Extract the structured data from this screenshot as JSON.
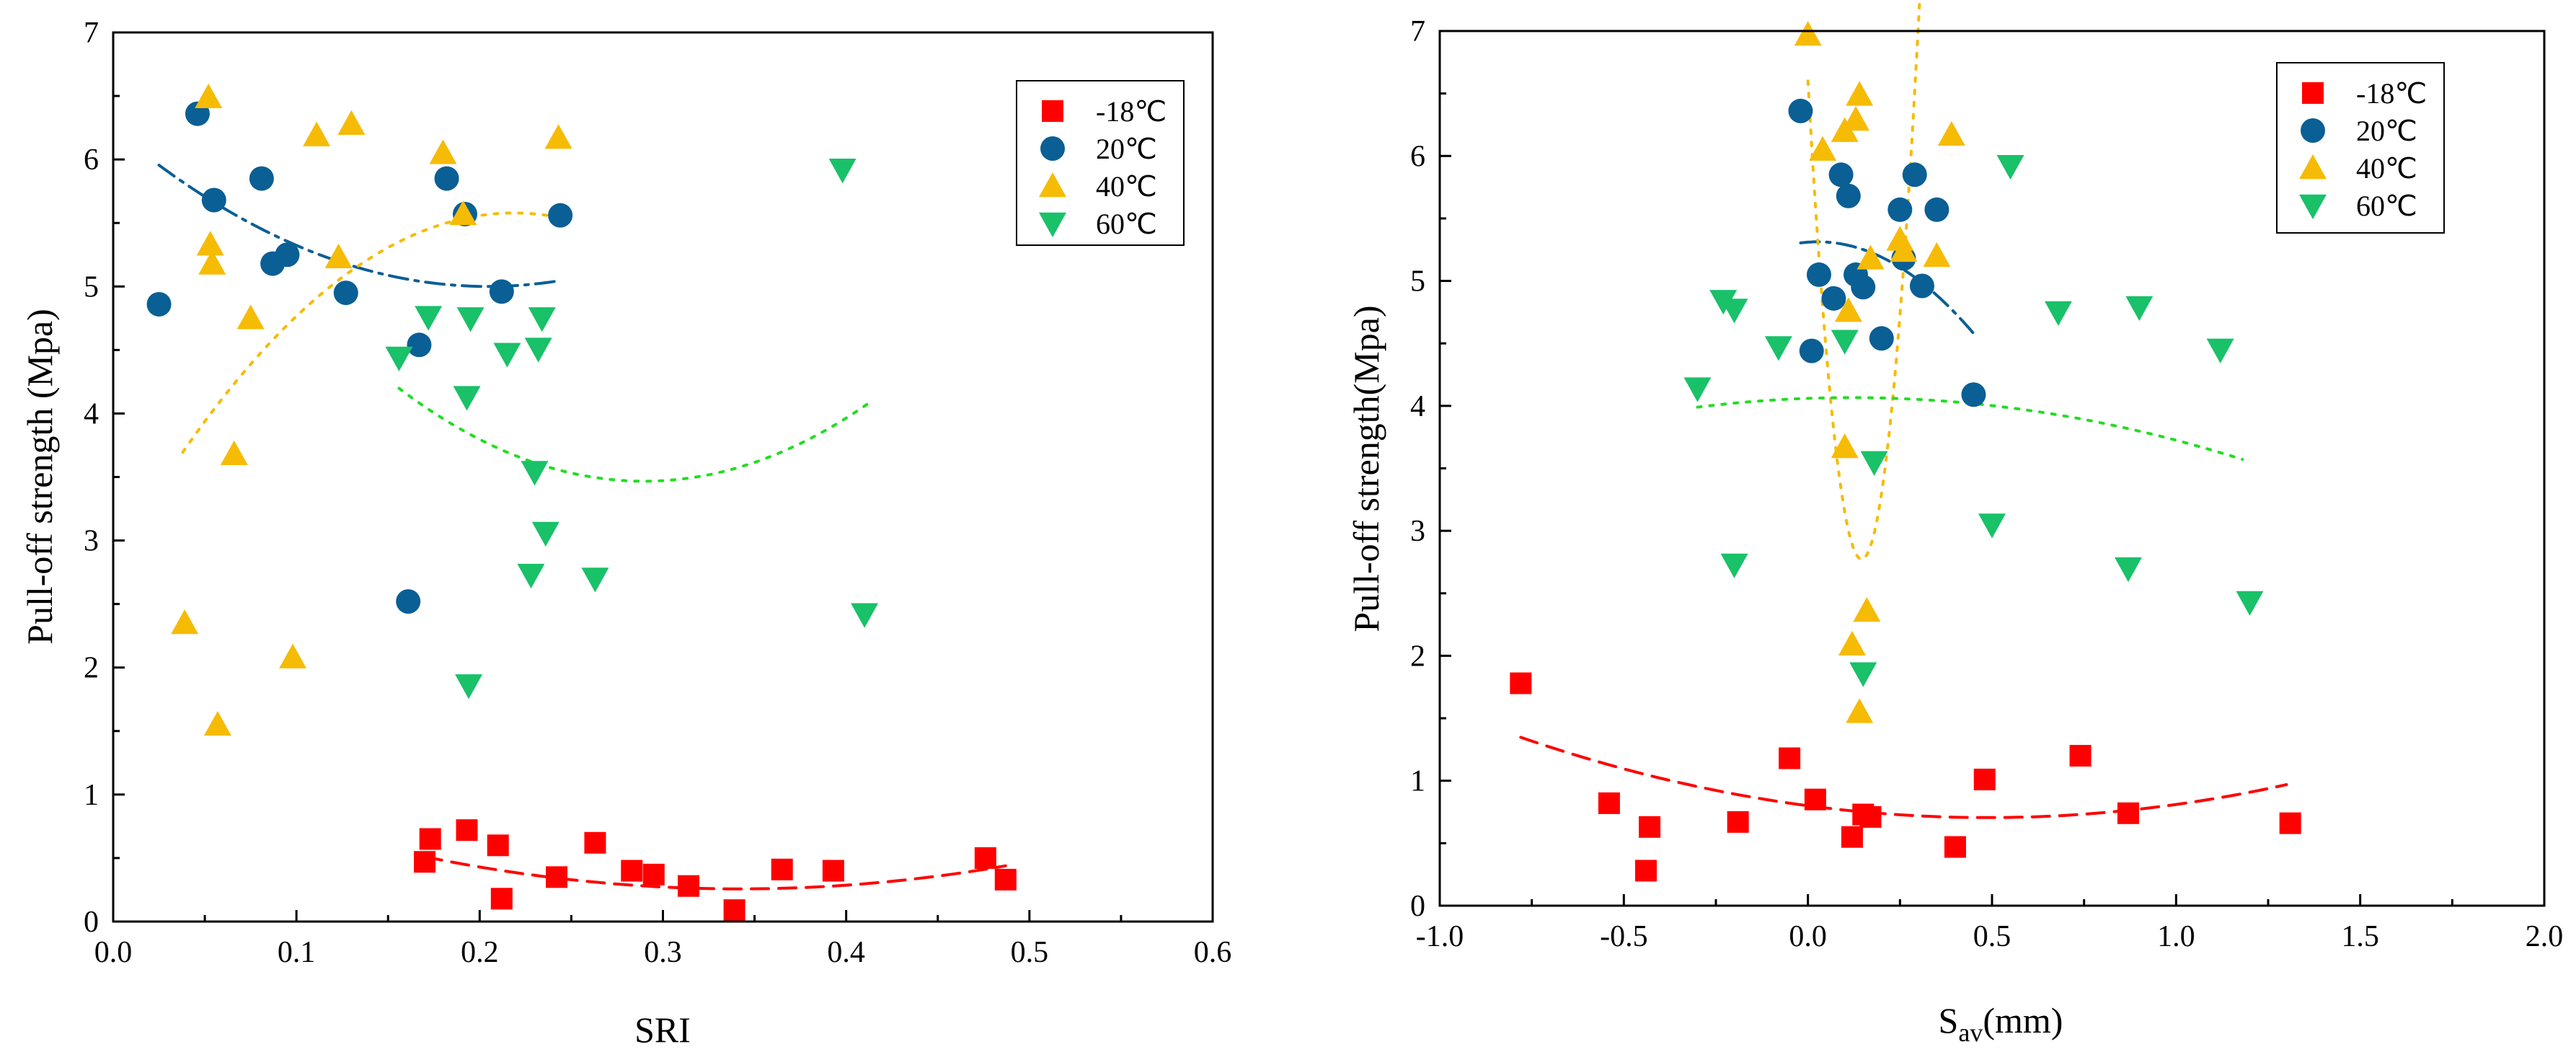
{
  "colors": {
    "m18": "#ff0000",
    "p20": "#0a5f95",
    "p40": "#f6bb04",
    "p60": "#19c169",
    "fit_m18": "#ff0000",
    "fit_p20": "#0a5f95",
    "fit_p40": "#f6bb04",
    "fit_p60": "#22dd22"
  },
  "chart_data": [
    {
      "type": "scatter",
      "xlabel": "SRI",
      "ylabel": "Pull-off strength (Mpa)",
      "xlim": [
        0.0,
        0.6
      ],
      "ylim": [
        0,
        7
      ],
      "xticks": [
        "0.0",
        "0.1",
        "0.2",
        "0.3",
        "0.4",
        "0.5",
        "0.6"
      ],
      "yticks": [
        "0",
        "1",
        "2",
        "3",
        "4",
        "5",
        "6",
        "7"
      ],
      "legend": "top-right",
      "series": [
        {
          "name": "-18℃",
          "marker": "square",
          "color_key": "m18",
          "points": [
            [
              0.17,
              0.47
            ],
            [
              0.173,
              0.65
            ],
            [
              0.193,
              0.72
            ],
            [
              0.21,
              0.6
            ],
            [
              0.212,
              0.18
            ],
            [
              0.242,
              0.35
            ],
            [
              0.263,
              0.62
            ],
            [
              0.283,
              0.4
            ],
            [
              0.295,
              0.37
            ],
            [
              0.314,
              0.28
            ],
            [
              0.339,
              0.09
            ],
            [
              0.365,
              0.41
            ],
            [
              0.393,
              0.4
            ],
            [
              0.476,
              0.5
            ],
            [
              0.487,
              0.33
            ]
          ],
          "fit": {
            "style": "dashed",
            "coeffs": [
              1.26,
              -5.87,
              8.59
            ],
            "range": [
              0.17,
              0.487
            ]
          }
        },
        {
          "name": "20℃",
          "marker": "circle",
          "color_key": "p20",
          "points": [
            [
              0.025,
              4.86
            ],
            [
              0.046,
              6.36
            ],
            [
              0.055,
              5.68
            ],
            [
              0.081,
              5.85
            ],
            [
              0.087,
              5.18
            ],
            [
              0.095,
              5.25
            ],
            [
              0.127,
              4.95
            ],
            [
              0.161,
              2.52
            ],
            [
              0.167,
              4.54
            ],
            [
              0.182,
              5.85
            ],
            [
              0.192,
              5.57
            ],
            [
              0.212,
              4.96
            ],
            [
              0.244,
              5.56
            ]
          ],
          "fit": {
            "style": "dashdot",
            "coeffs": [
              6.24,
              -12.13,
              29.67
            ],
            "range": [
              0.025,
              0.244
            ]
          }
        },
        {
          "name": "40℃",
          "marker": "triangle-up",
          "color_key": "p40",
          "points": [
            [
              0.039,
              2.35
            ],
            [
              0.052,
              6.49
            ],
            [
              0.053,
              5.33
            ],
            [
              0.054,
              5.18
            ],
            [
              0.057,
              1.55
            ],
            [
              0.066,
              3.68
            ],
            [
              0.075,
              4.75
            ],
            [
              0.098,
              2.08
            ],
            [
              0.111,
              6.19
            ],
            [
              0.123,
              5.23
            ],
            [
              0.13,
              6.28
            ],
            [
              0.18,
              6.05
            ],
            [
              0.191,
              5.57
            ],
            [
              0.243,
              6.17
            ]
          ],
          "fit": {
            "style": "dotted",
            "coeffs": [
              2.82,
              25.23,
              -57.69
            ],
            "range": [
              0.038,
              0.243
            ]
          }
        },
        {
          "name": "60℃",
          "marker": "triangle-down",
          "color_key": "p60",
          "points": [
            [
              0.156,
              4.44
            ],
            [
              0.172,
              4.76
            ],
            [
              0.195,
              4.75
            ],
            [
              0.193,
              4.13
            ],
            [
              0.215,
              4.47
            ],
            [
              0.23,
              3.54
            ],
            [
              0.232,
              4.51
            ],
            [
              0.234,
              4.75
            ],
            [
              0.236,
              3.06
            ],
            [
              0.228,
              2.73
            ],
            [
              0.263,
              2.7
            ],
            [
              0.194,
              1.86
            ],
            [
              0.398,
              5.92
            ],
            [
              0.41,
              2.42
            ]
          ],
          "fit": {
            "style": "dotted",
            "coeffs": [
              6.9,
              -23.7,
              40.9
            ],
            "range": [
              0.156,
              0.413
            ]
          }
        }
      ]
    },
    {
      "type": "scatter",
      "xlabel": "Sav(mm)",
      "ylabel": "Pull-off strength(Mpa)",
      "xlim": [
        -1.0,
        2.0
      ],
      "ylim": [
        0,
        7
      ],
      "xticks": [
        "-1.0",
        "-0.5",
        "0.0",
        "0.5",
        "1.0",
        "1.5",
        "2.0"
      ],
      "yticks": [
        "0",
        "1",
        "2",
        "3",
        "4",
        "5",
        "6",
        "7"
      ],
      "legend": "top-right",
      "series": [
        {
          "name": "-18℃",
          "marker": "square",
          "color_key": "m18",
          "points": [
            [
              -0.78,
              1.78
            ],
            [
              -0.54,
              0.82
            ],
            [
              -0.44,
              0.28
            ],
            [
              -0.43,
              0.63
            ],
            [
              -0.19,
              0.67
            ],
            [
              -0.05,
              1.18
            ],
            [
              0.02,
              0.85
            ],
            [
              0.12,
              0.55
            ],
            [
              0.15,
              0.73
            ],
            [
              0.17,
              0.71
            ],
            [
              0.4,
              0.47
            ],
            [
              0.48,
              1.01
            ],
            [
              0.74,
              1.2
            ],
            [
              0.87,
              0.74
            ],
            [
              1.31,
              0.66
            ]
          ],
          "fit": {
            "style": "dashed",
            "coeffs": [
              0.8,
              -0.39,
              0.4
            ],
            "range": [
              -0.78,
              1.3
            ]
          }
        },
        {
          "name": "20℃",
          "marker": "circle",
          "color_key": "p20",
          "points": [
            [
              -0.02,
              6.36
            ],
            [
              0.01,
              4.44
            ],
            [
              0.03,
              5.05
            ],
            [
              0.07,
              4.86
            ],
            [
              0.09,
              5.85
            ],
            [
              0.11,
              5.68
            ],
            [
              0.13,
              5.05
            ],
            [
              0.15,
              4.95
            ],
            [
              0.2,
              4.54
            ],
            [
              0.25,
              5.57
            ],
            [
              0.26,
              5.18
            ],
            [
              0.29,
              5.85
            ],
            [
              0.31,
              4.96
            ],
            [
              0.35,
              5.57
            ],
            [
              0.45,
              4.09
            ]
          ],
          "fit": {
            "style": "dashdot",
            "coeffs": [
              5.31,
              0.22,
              -4.1
            ],
            "range": [
              -0.02,
              0.45
            ]
          }
        },
        {
          "name": "40℃",
          "marker": "triangle-up",
          "color_key": "p40",
          "points": [
            [
              0.0,
              6.97
            ],
            [
              0.04,
              6.05
            ],
            [
              0.1,
              6.2
            ],
            [
              0.1,
              3.67
            ],
            [
              0.11,
              4.76
            ],
            [
              0.12,
              2.09
            ],
            [
              0.13,
              6.29
            ],
            [
              0.14,
              6.49
            ],
            [
              0.14,
              1.55
            ],
            [
              0.16,
              2.36
            ],
            [
              0.17,
              5.18
            ],
            [
              0.25,
              5.33
            ],
            [
              0.26,
              5.24
            ],
            [
              0.35,
              5.2
            ],
            [
              0.39,
              6.17
            ]
          ],
          "fit": {
            "style": "dotted",
            "coeffs": [
              6.6,
              -52.5,
              180
            ],
            "range": [
              0.0,
              0.39
            ]
          }
        },
        {
          "name": "60℃",
          "marker": "triangle-down",
          "color_key": "p60",
          "points": [
            [
              -0.3,
              4.14
            ],
            [
              -0.23,
              4.84
            ],
            [
              -0.2,
              4.77
            ],
            [
              -0.2,
              2.73
            ],
            [
              -0.08,
              4.47
            ],
            [
              0.1,
              4.52
            ],
            [
              0.15,
              1.86
            ],
            [
              0.18,
              3.55
            ],
            [
              0.5,
              3.05
            ],
            [
              0.55,
              5.92
            ],
            [
              0.68,
              4.75
            ],
            [
              0.87,
              2.7
            ],
            [
              0.9,
              4.79
            ],
            [
              1.12,
              4.45
            ],
            [
              1.2,
              2.43
            ]
          ],
          "fit": {
            "style": "dotted",
            "coeffs": [
              4.06,
              0.103,
              -0.438
            ],
            "range": [
              -0.3,
              1.18
            ]
          }
        }
      ]
    }
  ]
}
